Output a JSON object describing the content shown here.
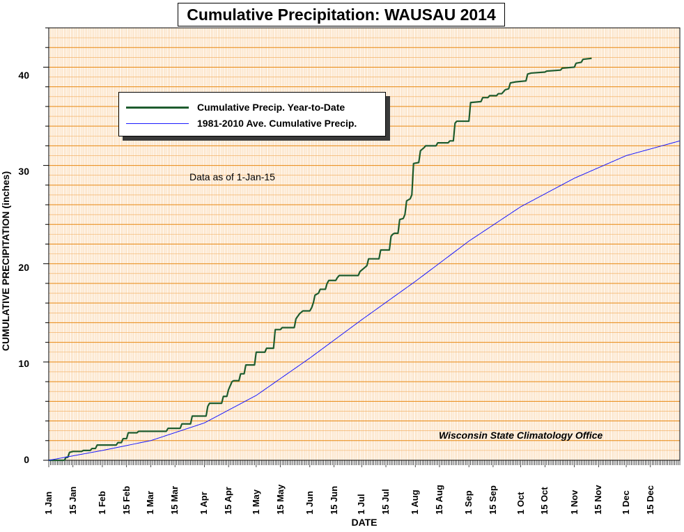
{
  "chart_data": {
    "type": "line",
    "title": "Cumulative Precipitation: WAUSAU 2014",
    "xlabel": "DATE",
    "ylabel": "CUMULATIVE PRECIPITATION (inches)",
    "ylim": [
      0,
      44
    ],
    "xlim": [
      0,
      365
    ],
    "y_ticks": [
      "0",
      "10",
      "20",
      "30",
      "40"
    ],
    "x_ticks": [
      {
        "day": 0,
        "label": "1 Jan"
      },
      {
        "day": 14,
        "label": "15 Jan"
      },
      {
        "day": 31,
        "label": "1 Feb"
      },
      {
        "day": 45,
        "label": "15 Feb"
      },
      {
        "day": 59,
        "label": "1 Mar"
      },
      {
        "day": 73,
        "label": "15 Mar"
      },
      {
        "day": 90,
        "label": "1 Apr"
      },
      {
        "day": 104,
        "label": "15 Apr"
      },
      {
        "day": 120,
        "label": "1 May"
      },
      {
        "day": 134,
        "label": "15 May"
      },
      {
        "day": 151,
        "label": "1 Jun"
      },
      {
        "day": 165,
        "label": "15 Jun"
      },
      {
        "day": 181,
        "label": "1 Jul"
      },
      {
        "day": 195,
        "label": "15 Jul"
      },
      {
        "day": 212,
        "label": "1 Aug"
      },
      {
        "day": 226,
        "label": "15 Aug"
      },
      {
        "day": 243,
        "label": "1 Sep"
      },
      {
        "day": 257,
        "label": "15 Sep"
      },
      {
        "day": 273,
        "label": "1 Oct"
      },
      {
        "day": 287,
        "label": "15 Oct"
      },
      {
        "day": 304,
        "label": "1 Nov"
      },
      {
        "day": 318,
        "label": "15 Nov"
      },
      {
        "day": 334,
        "label": "1 Dec"
      },
      {
        "day": 348,
        "label": "15 Dec"
      }
    ],
    "grid": true,
    "legend_placement": "upper-left",
    "note": "Data as of 1-Jan-15",
    "credit": "Wisconsin State Climatology Office",
    "series": [
      {
        "name": "Cumulative Precip. Year-to-Date",
        "color": "#1e5c2e",
        "style": "step",
        "points": [
          [
            0,
            0
          ],
          [
            9,
            0
          ],
          [
            10,
            0.3
          ],
          [
            11,
            0.3
          ],
          [
            12,
            0.8
          ],
          [
            14,
            0.9
          ],
          [
            19,
            0.9
          ],
          [
            20,
            1.0
          ],
          [
            24,
            1.0
          ],
          [
            25,
            1.2
          ],
          [
            27,
            1.2
          ],
          [
            28,
            1.55
          ],
          [
            39,
            1.55
          ],
          [
            40,
            1.8
          ],
          [
            42,
            1.8
          ],
          [
            43,
            2.2
          ],
          [
            45,
            2.2
          ],
          [
            46,
            2.8
          ],
          [
            51,
            2.8
          ],
          [
            52,
            2.95
          ],
          [
            68,
            2.95
          ],
          [
            69,
            3.25
          ],
          [
            76,
            3.25
          ],
          [
            77,
            3.7
          ],
          [
            82,
            3.7
          ],
          [
            83,
            4.5
          ],
          [
            91,
            4.5
          ],
          [
            92,
            5.5
          ],
          [
            93,
            5.8
          ],
          [
            100,
            5.8
          ],
          [
            101,
            6.5
          ],
          [
            103,
            6.5
          ],
          [
            104,
            7.2
          ],
          [
            106,
            8.0
          ],
          [
            107,
            8.1
          ],
          [
            110,
            8.1
          ],
          [
            111,
            8.8
          ],
          [
            113,
            8.8
          ],
          [
            114,
            9.7
          ],
          [
            119,
            9.7
          ],
          [
            120,
            11.0
          ],
          [
            125,
            11.0
          ],
          [
            126,
            11.4
          ],
          [
            130,
            11.4
          ],
          [
            131,
            13.3
          ],
          [
            134,
            13.3
          ],
          [
            135,
            13.5
          ],
          [
            142,
            13.5
          ],
          [
            143,
            14.4
          ],
          [
            145,
            14.9
          ],
          [
            147,
            15.2
          ],
          [
            151,
            15.2
          ],
          [
            152,
            15.5
          ],
          [
            153,
            16.0
          ],
          [
            154,
            16.8
          ],
          [
            156,
            17.0
          ],
          [
            157,
            17.4
          ],
          [
            160,
            17.4
          ],
          [
            161,
            18.0
          ],
          [
            162,
            18.3
          ],
          [
            166,
            18.3
          ],
          [
            167,
            18.6
          ],
          [
            168,
            18.8
          ],
          [
            179,
            18.8
          ],
          [
            180,
            19.2
          ],
          [
            182,
            19.5
          ],
          [
            184,
            19.8
          ],
          [
            185,
            20.5
          ],
          [
            191,
            20.5
          ],
          [
            192,
            21.4
          ],
          [
            197,
            21.4
          ],
          [
            198,
            22.8
          ],
          [
            199,
            23.0
          ],
          [
            200,
            23.1
          ],
          [
            202,
            23.1
          ],
          [
            203,
            24.5
          ],
          [
            205,
            24.6
          ],
          [
            206,
            25.0
          ],
          [
            207,
            26.4
          ],
          [
            209,
            26.6
          ],
          [
            210,
            27.0
          ],
          [
            211,
            30.2
          ],
          [
            214,
            30.3
          ],
          [
            215,
            31.5
          ],
          [
            217,
            31.8
          ],
          [
            218,
            32.0
          ],
          [
            224,
            32.0
          ],
          [
            225,
            32.3
          ],
          [
            231,
            32.3
          ],
          [
            232,
            32.5
          ],
          [
            234,
            32.5
          ],
          [
            235,
            34.3
          ],
          [
            236,
            34.5
          ],
          [
            243,
            34.5
          ],
          [
            244,
            36.4
          ],
          [
            250,
            36.5
          ],
          [
            251,
            36.9
          ],
          [
            254,
            36.9
          ],
          [
            255,
            37.1
          ],
          [
            259,
            37.1
          ],
          [
            260,
            37.3
          ],
          [
            262,
            37.3
          ],
          [
            263,
            37.5
          ],
          [
            264,
            37.7
          ],
          [
            266,
            37.8
          ],
          [
            267,
            38.4
          ],
          [
            270,
            38.5
          ],
          [
            276,
            38.6
          ],
          [
            277,
            39.3
          ],
          [
            279,
            39.4
          ],
          [
            287,
            39.5
          ],
          [
            288,
            39.6
          ],
          [
            296,
            39.7
          ],
          [
            297,
            39.9
          ],
          [
            304,
            40.0
          ],
          [
            305,
            40.4
          ],
          [
            308,
            40.5
          ],
          [
            309,
            40.8
          ],
          [
            314,
            40.9
          ]
        ]
      },
      {
        "name": "1981-2010 Ave. Cumulative Precip.",
        "color": "#1a1aff",
        "style": "smooth",
        "points": [
          [
            0,
            0
          ],
          [
            31,
            1.0
          ],
          [
            59,
            2.0
          ],
          [
            90,
            3.8
          ],
          [
            120,
            6.6
          ],
          [
            151,
            10.4
          ],
          [
            181,
            14.3
          ],
          [
            212,
            18.2
          ],
          [
            243,
            22.3
          ],
          [
            273,
            25.8
          ],
          [
            304,
            28.7
          ],
          [
            334,
            31.0
          ],
          [
            365,
            32.5
          ]
        ]
      }
    ]
  }
}
